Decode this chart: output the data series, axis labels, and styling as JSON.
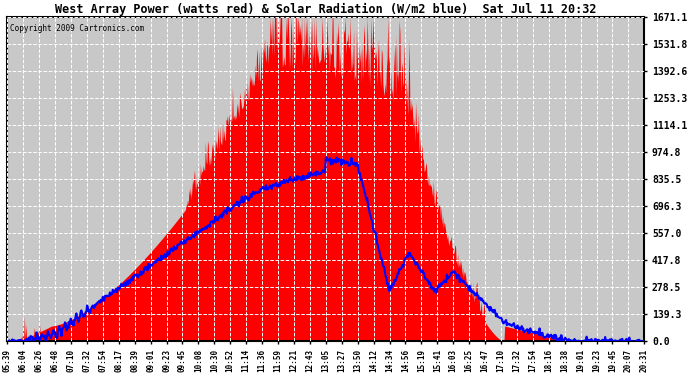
{
  "title": "West Array Power (watts red) & Solar Radiation (W/m2 blue)  Sat Jul 11 20:32",
  "copyright": "Copyright 2009 Cartronics.com",
  "y_max": 1671.1,
  "y_ticks": [
    0.0,
    139.3,
    278.5,
    417.8,
    557.0,
    696.3,
    835.5,
    974.8,
    1114.1,
    1253.3,
    1392.6,
    1531.8,
    1671.1
  ],
  "x_labels": [
    "05:39",
    "06:04",
    "06:26",
    "06:48",
    "07:10",
    "07:32",
    "07:54",
    "08:17",
    "08:39",
    "09:01",
    "09:23",
    "09:45",
    "10:08",
    "10:30",
    "10:52",
    "11:14",
    "11:36",
    "11:59",
    "12:21",
    "12:43",
    "13:05",
    "13:27",
    "13:50",
    "14:12",
    "14:34",
    "14:56",
    "15:19",
    "15:41",
    "16:03",
    "16:25",
    "16:47",
    "17:10",
    "17:32",
    "17:54",
    "18:16",
    "18:38",
    "19:01",
    "19:23",
    "19:45",
    "20:07",
    "20:31"
  ],
  "bg_color": "#c8c8c8",
  "grid_color": "#ffffff",
  "red_color": "#ff0000",
  "blue_color": "#0000ff",
  "title_bg": "#ffffff",
  "border_color": "#000000"
}
